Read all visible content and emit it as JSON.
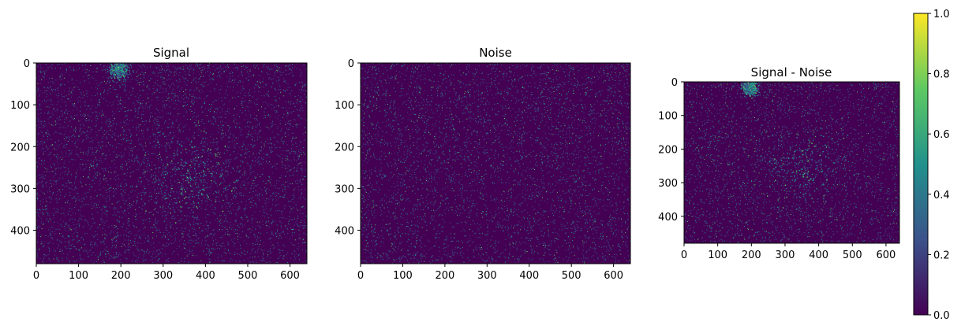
{
  "chart_data": [
    {
      "type": "heatmap",
      "title": "Signal",
      "xlim": [
        0,
        640
      ],
      "ylim": [
        480,
        0
      ],
      "x_ticks": [
        0,
        100,
        200,
        300,
        400,
        500,
        600
      ],
      "y_ticks": [
        0,
        100,
        200,
        300,
        400
      ],
      "hotspots": [
        {
          "x": 195,
          "y": 15,
          "spread": 12,
          "strength": 0.9
        },
        {
          "x": 365,
          "y": 265,
          "spread": 55,
          "strength": 0.6
        }
      ]
    },
    {
      "type": "heatmap",
      "title": "Noise",
      "xlim": [
        0,
        640
      ],
      "ylim": [
        480,
        0
      ],
      "x_ticks": [
        0,
        100,
        200,
        300,
        400,
        500,
        600
      ],
      "y_ticks": [
        0,
        100,
        200,
        300,
        400
      ],
      "hotspots": []
    },
    {
      "type": "heatmap",
      "title": "Signal - Noise",
      "xlim": [
        0,
        640
      ],
      "ylim": [
        480,
        0
      ],
      "x_ticks": [
        0,
        100,
        200,
        300,
        400,
        500,
        600
      ],
      "y_ticks": [
        0,
        100,
        200,
        300,
        400
      ],
      "hotspots": [
        {
          "x": 195,
          "y": 15,
          "spread": 12,
          "strength": 0.9
        },
        {
          "x": 365,
          "y": 265,
          "spread": 55,
          "strength": 0.5
        }
      ]
    }
  ],
  "colorbar": {
    "colormap": "viridis",
    "range": [
      0.0,
      1.0
    ],
    "ticks": [
      "0.0",
      "0.2",
      "0.4",
      "0.6",
      "0.8",
      "1.0"
    ],
    "colors": [
      "#440154",
      "#3b528b",
      "#21918c",
      "#5ec962",
      "#fde725"
    ]
  },
  "background_color": "#440154"
}
